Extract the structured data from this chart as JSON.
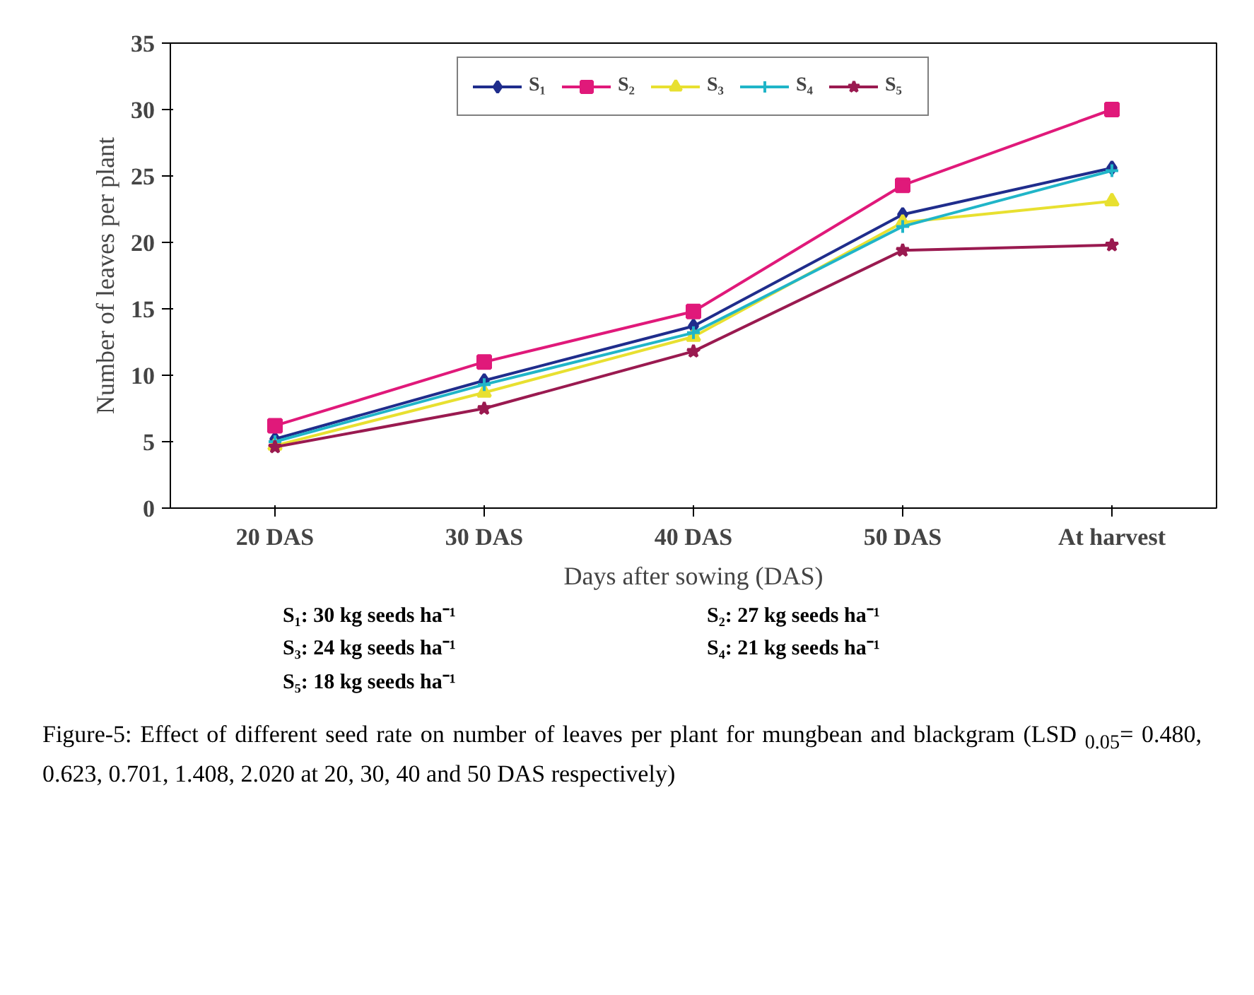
{
  "chart_data": {
    "type": "line",
    "xlabel": "Days after sowing (DAS)",
    "ylabel": "Number of leaves per plant",
    "categories": [
      "20 DAS",
      "30 DAS",
      "40 DAS",
      "50 DAS",
      "At harvest"
    ],
    "ylim": [
      0,
      35
    ],
    "yticks": [
      0,
      5,
      10,
      15,
      20,
      25,
      30,
      35
    ],
    "grid": false,
    "legend": "top",
    "series": [
      {
        "name": "S₁",
        "color": "#1f2d8c",
        "marker": "diamond",
        "values": [
          5.2,
          9.6,
          13.7,
          22.1,
          25.6
        ]
      },
      {
        "name": "S₂",
        "color": "#e0197a",
        "marker": "square",
        "values": [
          6.2,
          11.0,
          14.8,
          24.3,
          30.0
        ]
      },
      {
        "name": "S₃",
        "color": "#e8e030",
        "marker": "triangle",
        "values": [
          4.7,
          8.7,
          12.9,
          21.5,
          23.1
        ]
      },
      {
        "name": "S₄",
        "color": "#20b5c8",
        "marker": "cross",
        "values": [
          5.0,
          9.3,
          13.2,
          21.2,
          25.4
        ]
      },
      {
        "name": "S₅",
        "color": "#9a1a50",
        "marker": "star",
        "values": [
          4.6,
          7.5,
          11.8,
          19.4,
          19.8
        ]
      }
    ],
    "annotations": [
      "S₁: 30 kg seeds ha⁻¹",
      "S₂: 27 kg seeds ha⁻¹",
      "S₃: 24 kg seeds ha⁻¹",
      "S₄: 21 kg seeds ha⁻¹",
      "S₅: 18 kg seeds ha⁻¹",
      "Figure-5: Effect of different seed rate on number of leaves per plant for mungbean and blackgram (LSD $_{0.05}$= 0.480, 0.623, 0.701, 1.408, 2.020 at 20, 30, 40 and 50 DAS respectively)"
    ]
  }
}
